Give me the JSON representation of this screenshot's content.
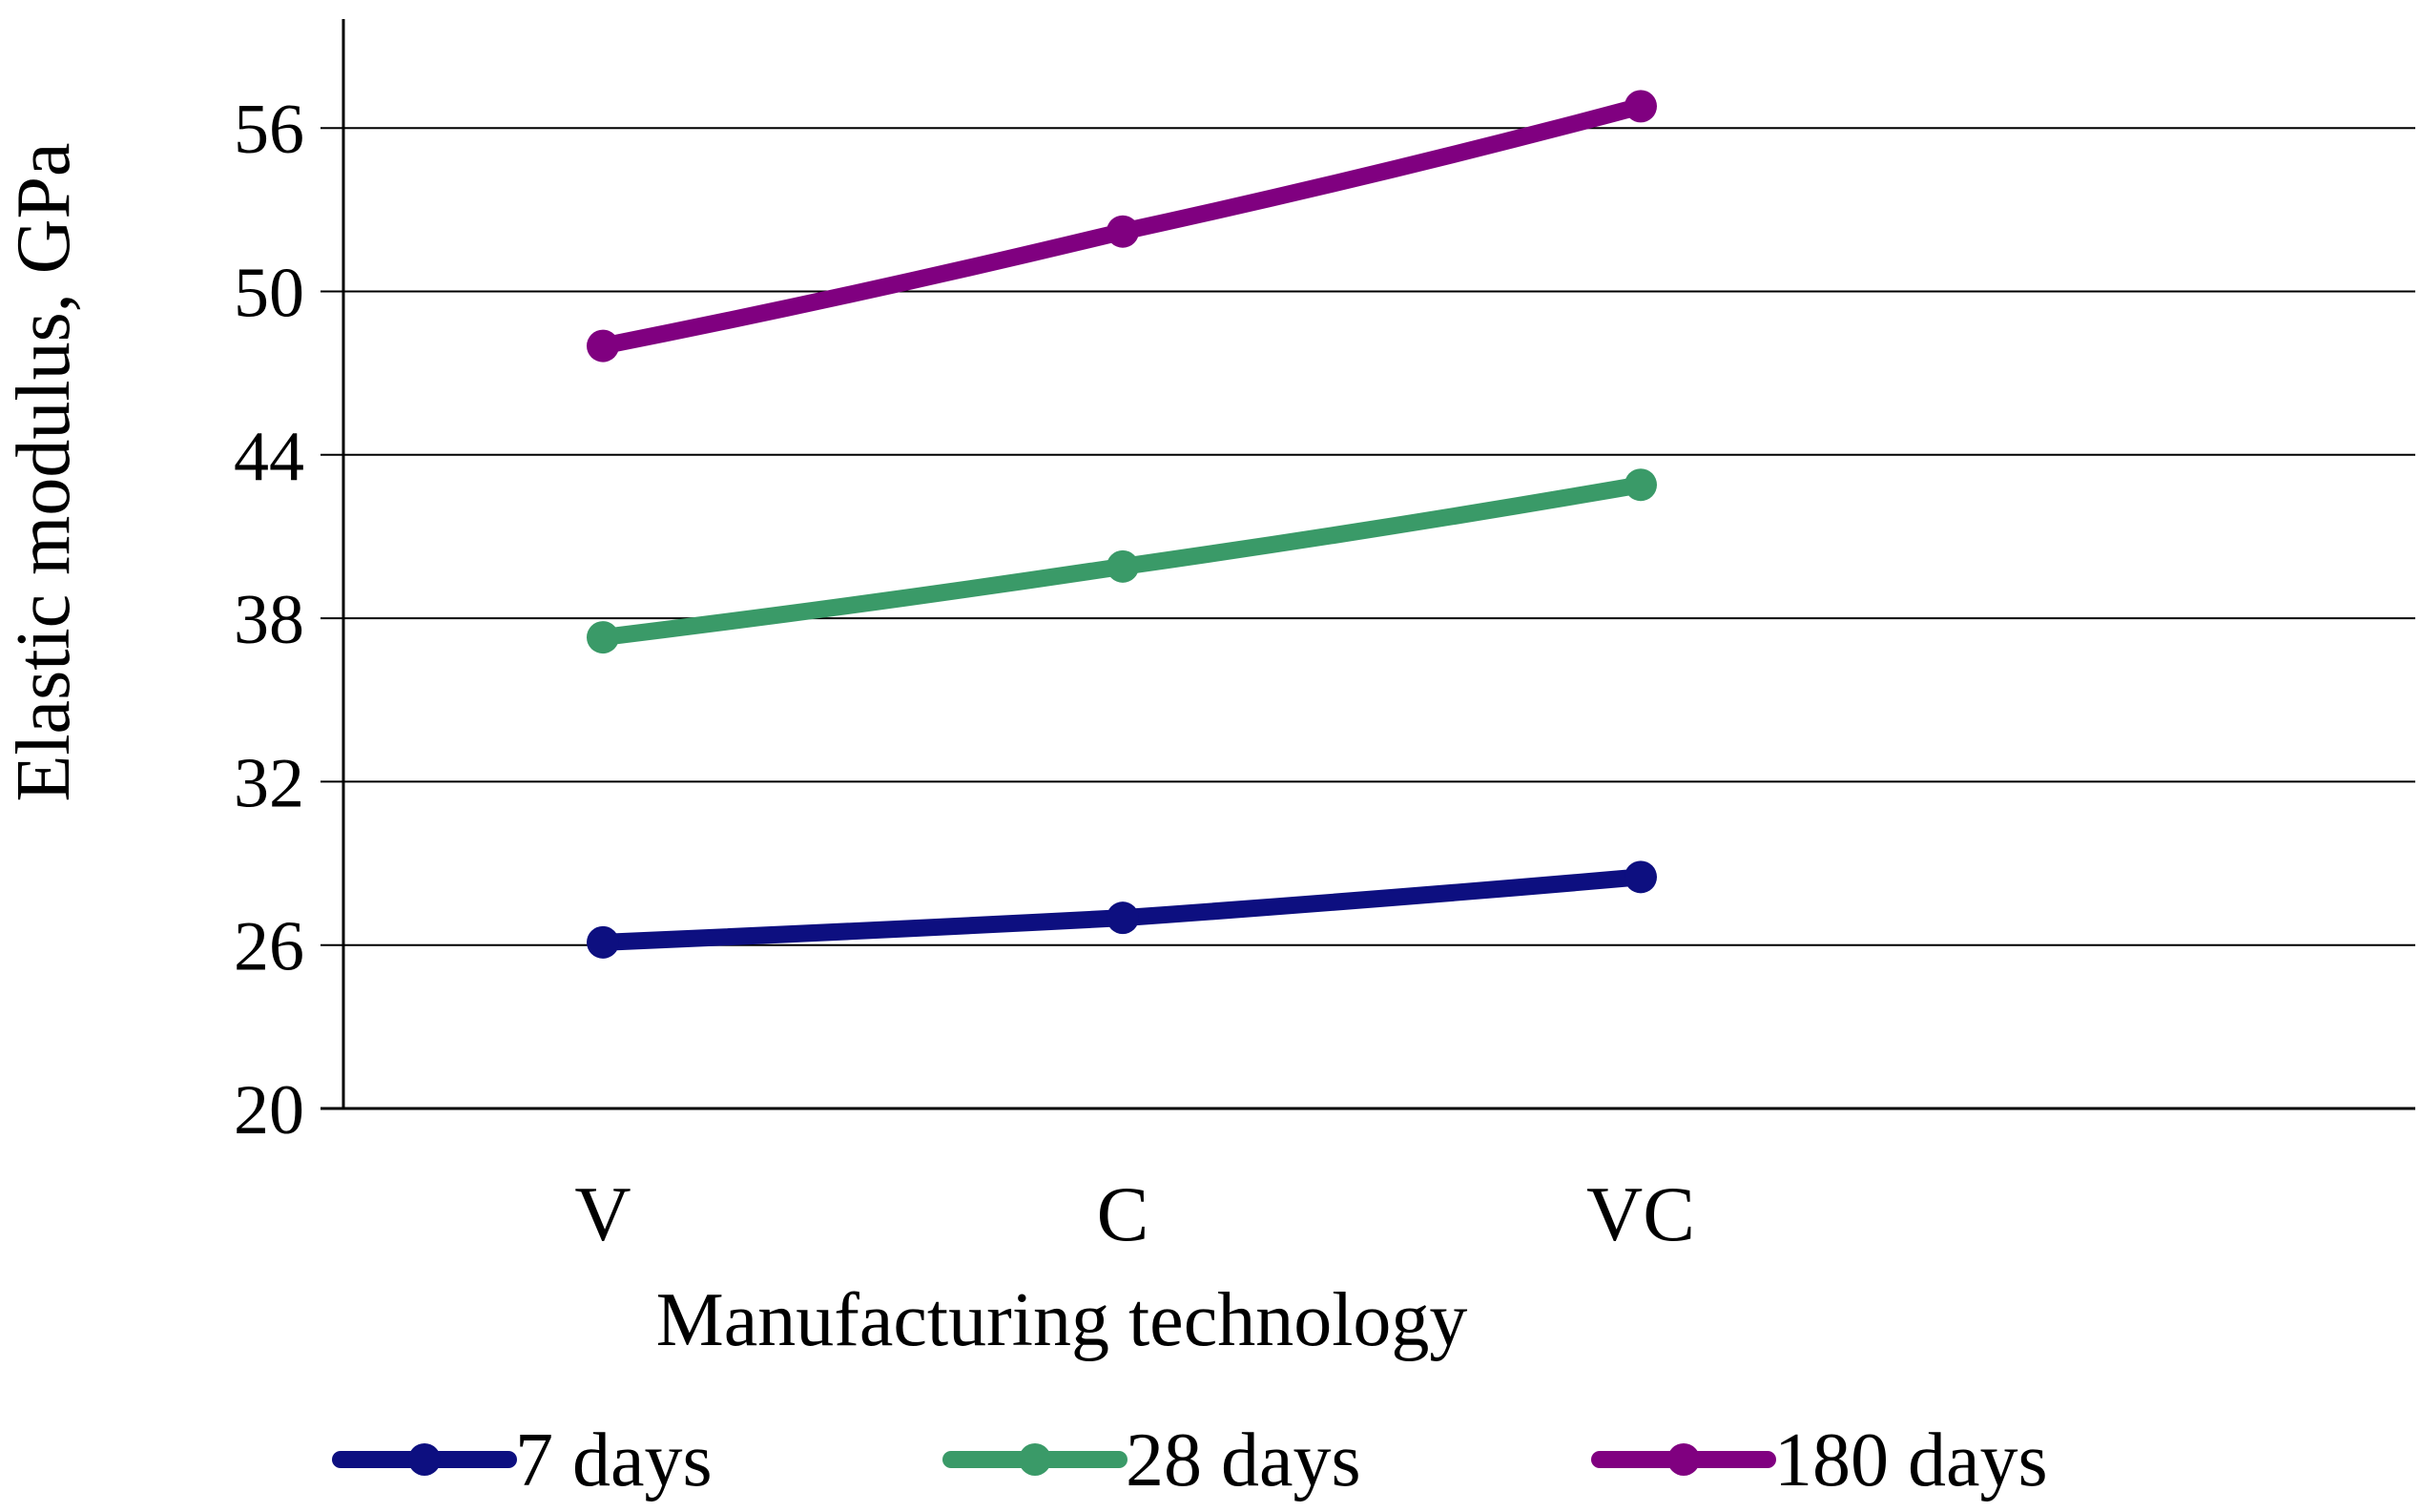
{
  "chart_data": {
    "type": "line",
    "title": "",
    "xlabel": "Manufacturing technology",
    "ylabel": "Elastic modulus, GPa",
    "categories": [
      "V",
      "C",
      "VC"
    ],
    "ylim": [
      20,
      60
    ],
    "yticks": [
      20,
      26,
      32,
      38,
      44,
      50,
      56
    ],
    "grid": true,
    "legend_position": "bottom",
    "series": [
      {
        "name": "7 days",
        "color": "#0d0f80",
        "values": [
          26.1,
          27.0,
          28.5
        ]
      },
      {
        "name": "28 days",
        "color": "#3a9a68",
        "values": [
          37.3,
          39.9,
          42.9
        ]
      },
      {
        "name": "180 days",
        "color": "#800080",
        "values": [
          48.0,
          52.2,
          56.8
        ]
      }
    ]
  }
}
